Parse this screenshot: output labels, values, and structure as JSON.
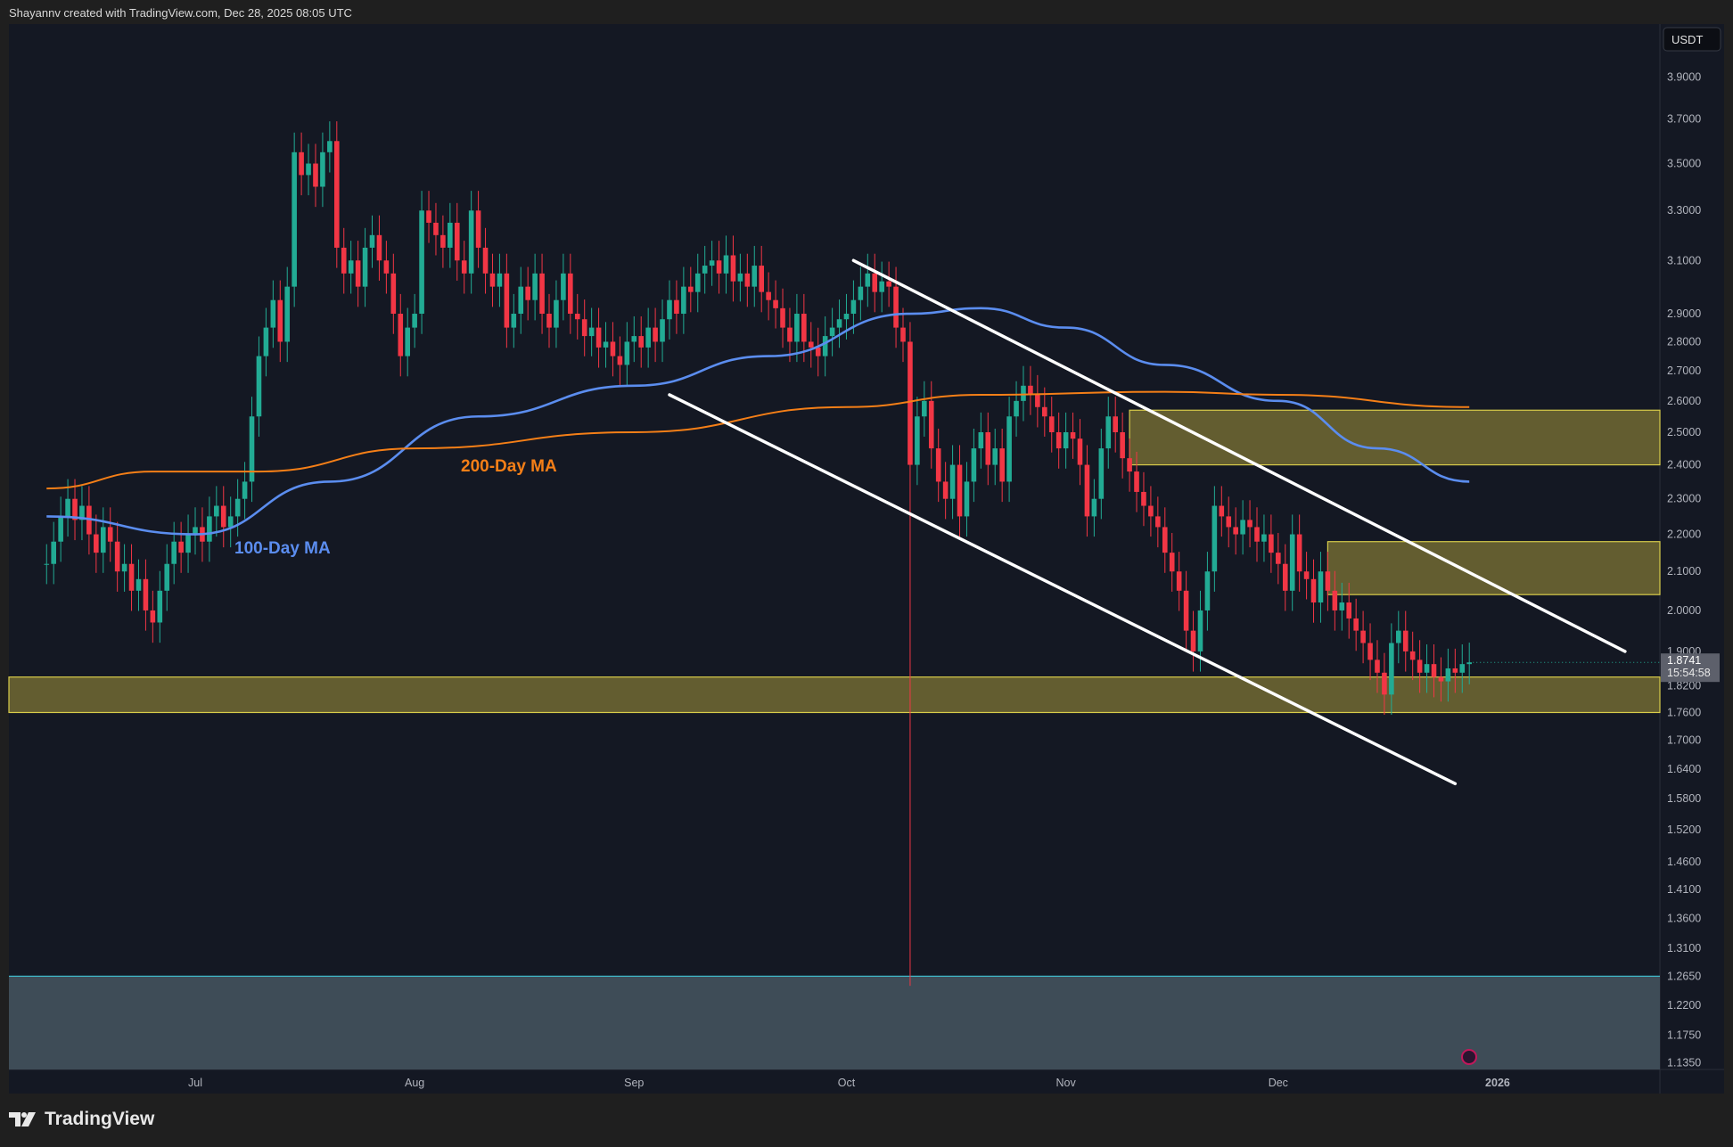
{
  "header": {
    "attribution": "Shayannv created with TradingView.com, Dec 28, 2025 08:05 UTC"
  },
  "footer": {
    "logo_text": "TradingView"
  },
  "colors": {
    "up": "#22ab94",
    "down": "#f23645",
    "ma100": "#5b8def",
    "ma200": "#f57f17",
    "zone_fill": "#6b6532",
    "zone_border": "#d8cc4a",
    "support_zone_fill": "#3e4c57",
    "support_zone_border": "#3fb8c8",
    "channel": "#ffffff",
    "background": "#141823"
  },
  "chart_data": {
    "type": "candlestick",
    "currency": "USDT",
    "y_scale": "log",
    "ylim": [
      1.12,
      4.05
    ],
    "y_ticks": [
      "3.9000",
      "3.7000",
      "3.5000",
      "3.3000",
      "3.1000",
      "2.9000",
      "2.8000",
      "2.7000",
      "2.6000",
      "2.5000",
      "2.4000",
      "2.3000",
      "2.2000",
      "2.1000",
      "2.0000",
      "1.9000",
      "1.8200",
      "1.7600",
      "1.7000",
      "1.6400",
      "1.5800",
      "1.5200",
      "1.4600",
      "1.4100",
      "1.3600",
      "1.3100",
      "1.2650",
      "1.2200",
      "1.1750",
      "1.1350"
    ],
    "x_ticks": [
      {
        "label": "Jul",
        "date": "2025-07-01"
      },
      {
        "label": "Aug",
        "date": "2025-08-01"
      },
      {
        "label": "Sep",
        "date": "2025-09-01"
      },
      {
        "label": "Oct",
        "date": "2025-10-01"
      },
      {
        "label": "Nov",
        "date": "2025-11-01"
      },
      {
        "label": "Dec",
        "date": "2025-12-01"
      },
      {
        "label": "2026",
        "date": "2026-01-01"
      }
    ],
    "start_date": "2025-06-10",
    "daily_close": [
      2.12,
      2.18,
      2.25,
      2.3,
      2.24,
      2.28,
      2.2,
      2.15,
      2.22,
      2.18,
      2.1,
      2.12,
      2.05,
      2.08,
      2.0,
      1.97,
      2.05,
      2.12,
      2.18,
      2.15,
      2.2,
      2.22,
      2.18,
      2.25,
      2.28,
      2.22,
      2.25,
      2.3,
      2.35,
      2.55,
      2.75,
      2.85,
      2.95,
      2.8,
      3.0,
      3.55,
      3.45,
      3.5,
      3.4,
      3.55,
      3.6,
      3.15,
      3.05,
      3.1,
      3.0,
      3.15,
      3.2,
      3.1,
      3.05,
      2.9,
      2.75,
      2.85,
      2.9,
      3.3,
      3.25,
      3.2,
      3.15,
      3.25,
      3.1,
      3.05,
      3.3,
      3.15,
      3.05,
      3.0,
      3.05,
      2.85,
      2.9,
      3.0,
      2.95,
      3.05,
      2.9,
      2.85,
      2.95,
      3.05,
      2.9,
      2.88,
      2.82,
      2.85,
      2.78,
      2.8,
      2.75,
      2.72,
      2.8,
      2.82,
      2.78,
      2.85,
      2.8,
      2.88,
      2.95,
      2.9,
      3.0,
      2.98,
      3.05,
      3.08,
      3.1,
      3.05,
      3.12,
      3.02,
      3.05,
      3.0,
      3.08,
      2.98,
      2.95,
      2.92,
      2.85,
      2.8,
      2.9,
      2.8,
      2.78,
      2.75,
      2.82,
      2.85,
      2.88,
      2.9,
      2.95,
      3.0,
      3.05,
      2.98,
      3.02,
      3.0,
      2.85,
      2.8,
      2.4,
      2.55,
      2.6,
      2.45,
      2.35,
      2.3,
      2.4,
      2.25,
      2.35,
      2.45,
      2.5,
      2.4,
      2.45,
      2.35,
      2.55,
      2.6,
      2.65,
      2.62,
      2.58,
      2.55,
      2.5,
      2.45,
      2.5,
      2.48,
      2.4,
      2.25,
      2.3,
      2.45,
      2.55,
      2.5,
      2.42,
      2.38,
      2.32,
      2.28,
      2.25,
      2.22,
      2.15,
      2.1,
      2.05,
      1.95,
      1.9,
      2.0,
      2.1,
      2.28,
      2.25,
      2.22,
      2.2,
      2.24,
      2.22,
      2.18,
      2.2,
      2.15,
      2.12,
      2.05,
      2.2,
      2.1,
      2.08,
      2.02,
      2.1,
      2.05,
      2.0,
      2.02,
      1.98,
      1.95,
      1.92,
      1.88,
      1.85,
      1.8,
      1.92,
      1.95,
      1.9,
      1.88,
      1.85,
      1.87,
      1.84,
      1.83,
      1.86,
      1.85,
      1.87,
      1.8741
    ],
    "notable_lows": [
      {
        "date": "2025-10-10",
        "low": 1.25
      }
    ],
    "series": [
      {
        "name": "100-Day MA",
        "points": [
          [
            "2025-06-10",
            2.25
          ],
          [
            "2025-07-01",
            2.2
          ],
          [
            "2025-07-20",
            2.35
          ],
          [
            "2025-08-10",
            2.55
          ],
          [
            "2025-09-01",
            2.65
          ],
          [
            "2025-09-20",
            2.75
          ],
          [
            "2025-10-10",
            2.9
          ],
          [
            "2025-10-20",
            2.92
          ],
          [
            "2025-11-01",
            2.85
          ],
          [
            "2025-11-15",
            2.72
          ],
          [
            "2025-12-01",
            2.6
          ],
          [
            "2025-12-15",
            2.45
          ],
          [
            "2025-12-28",
            2.35
          ]
        ]
      },
      {
        "name": "200-Day MA",
        "points": [
          [
            "2025-06-10",
            2.33
          ],
          [
            "2025-06-25",
            2.38
          ],
          [
            "2025-07-10",
            2.38
          ],
          [
            "2025-08-01",
            2.45
          ],
          [
            "2025-09-01",
            2.5
          ],
          [
            "2025-10-01",
            2.58
          ],
          [
            "2025-10-20",
            2.62
          ],
          [
            "2025-11-15",
            2.63
          ],
          [
            "2025-12-01",
            2.62
          ],
          [
            "2025-12-28",
            2.58
          ]
        ]
      }
    ],
    "zones": [
      {
        "from": "2025-11-10",
        "low": 2.4,
        "high": 2.57
      },
      {
        "from": "2025-12-08",
        "low": 2.04,
        "high": 2.18
      },
      {
        "from": "start",
        "low": 1.76,
        "high": 1.84
      }
    ],
    "support_zone": {
      "high": 1.265
    },
    "channel": [
      {
        "from": [
          "2025-10-02",
          3.1
        ],
        "to": [
          "2026-01-19",
          1.9
        ]
      },
      {
        "from": [
          "2025-09-06",
          2.62
        ],
        "to": [
          "2025-12-26",
          1.61
        ]
      }
    ],
    "last_price": "1.8741",
    "countdown": "15:54:58"
  }
}
